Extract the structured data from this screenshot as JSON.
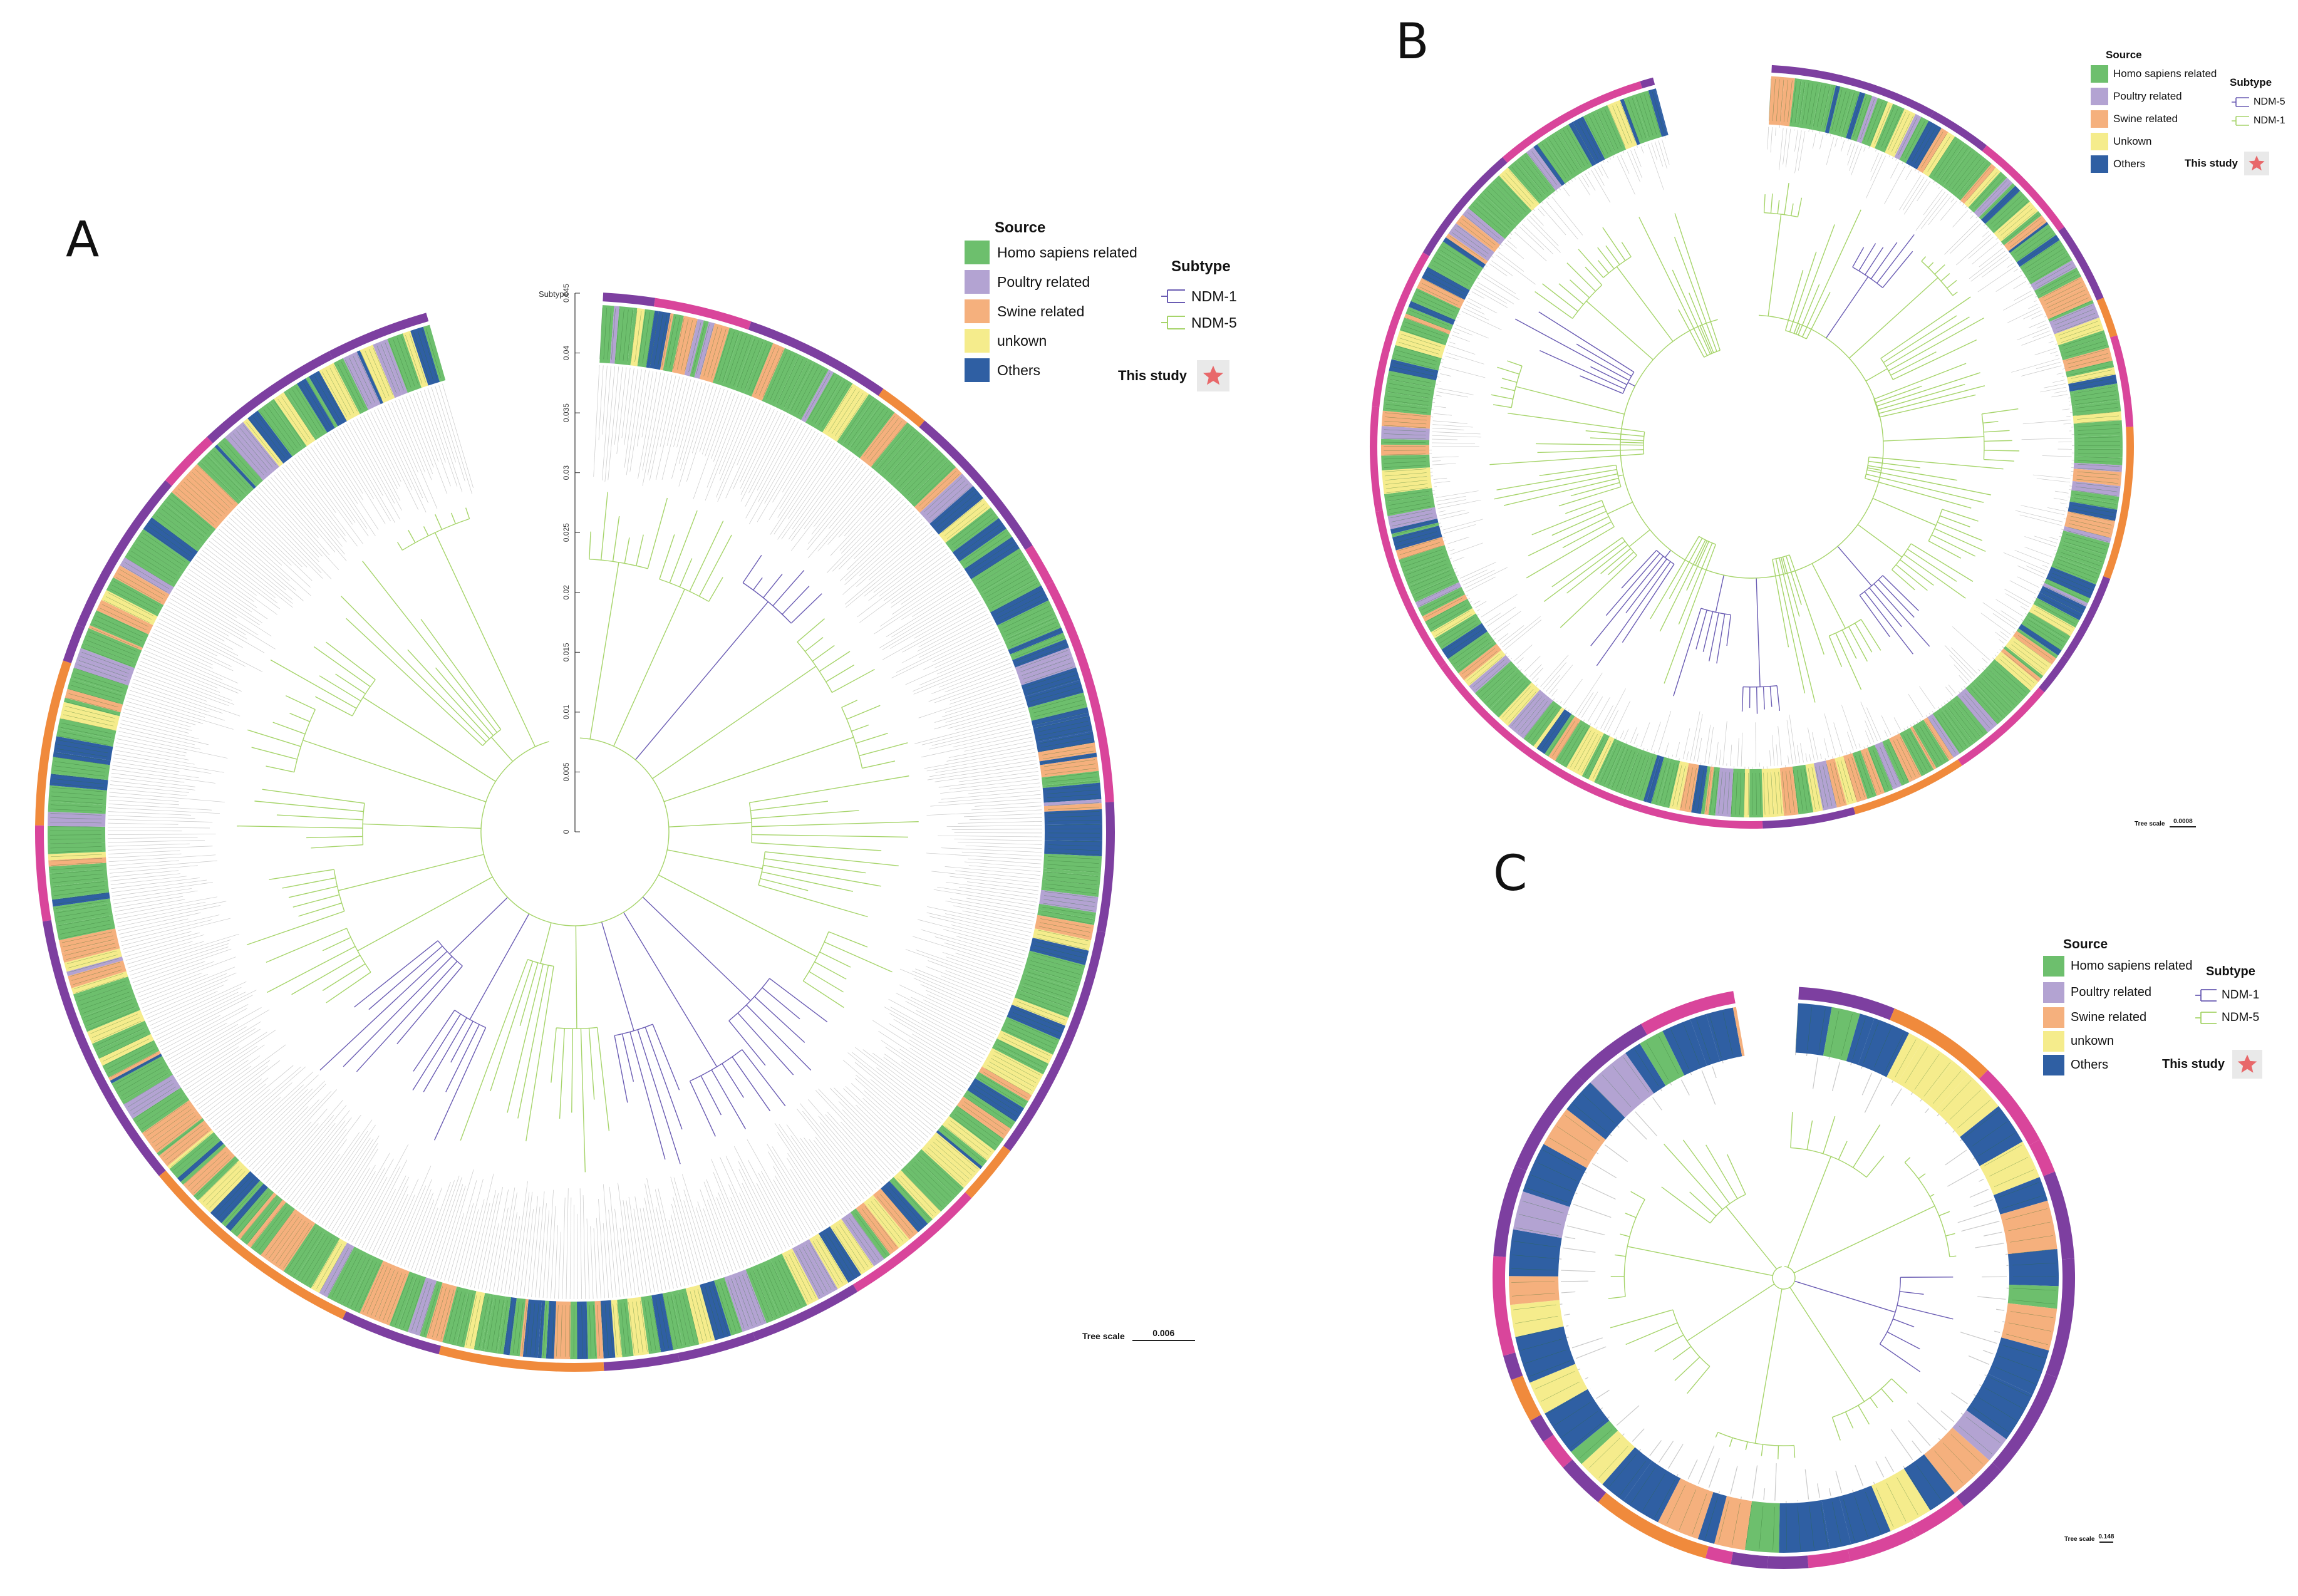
{
  "panels": {
    "a": {
      "label": "A",
      "tree_scale_label": "Tree scale",
      "tree_scale_value": "0.006",
      "subtype_ring_label": "Subtype",
      "axis_ticks": [
        "0",
        "0.005",
        "0.01",
        "0.015",
        "0.02",
        "0.025",
        "0.03",
        "0.035",
        "0.04",
        "0.045"
      ]
    },
    "b": {
      "label": "B",
      "tree_scale_label": "Tree scale",
      "tree_scale_value": "0.0008"
    },
    "c": {
      "label": "C",
      "tree_scale_label": "Tree scale",
      "tree_scale_value": "0.148"
    }
  },
  "legend_a": {
    "source_title": "Source",
    "source_items": [
      "Homo sapiens related",
      "Poultry related",
      "Swine related",
      "unkown",
      "Others"
    ],
    "subtype_title": "Subtype",
    "subtype_items": [
      "NDM-1",
      "NDM-5"
    ],
    "study_label": "This study"
  },
  "legend_b": {
    "source_title": "Source",
    "source_items": [
      "Homo sapiens related",
      "Poultry related",
      "Swine related",
      "Unkown",
      "Others"
    ],
    "subtype_title": "Subtype",
    "subtype_items": [
      "NDM-5",
      "NDM-1"
    ],
    "study_label": "This study"
  },
  "legend_c": {
    "source_title": "Source",
    "source_items": [
      "Homo sapiens related",
      "Poultry related",
      "Swine related",
      "unkown",
      "Others"
    ],
    "subtype_title": "Subtype",
    "subtype_items": [
      "NDM-1",
      "NDM-5"
    ],
    "study_label": "This study"
  },
  "colors": {
    "homo": "#6dbf6d",
    "poultry": "#b3a3d2",
    "swine": "#f5b07d",
    "unknown": "#f5ec8c",
    "others": "#2f5fa3",
    "ndm1_branch": "#6a5cb3",
    "ndm5_branch": "#a6d46a",
    "outer_purple": "#7d3fa0",
    "outer_magenta": "#d9459b",
    "outer_orange": "#f08a3c",
    "study_star": "#e8686a",
    "leaf_line": "#c9c9c9"
  }
}
